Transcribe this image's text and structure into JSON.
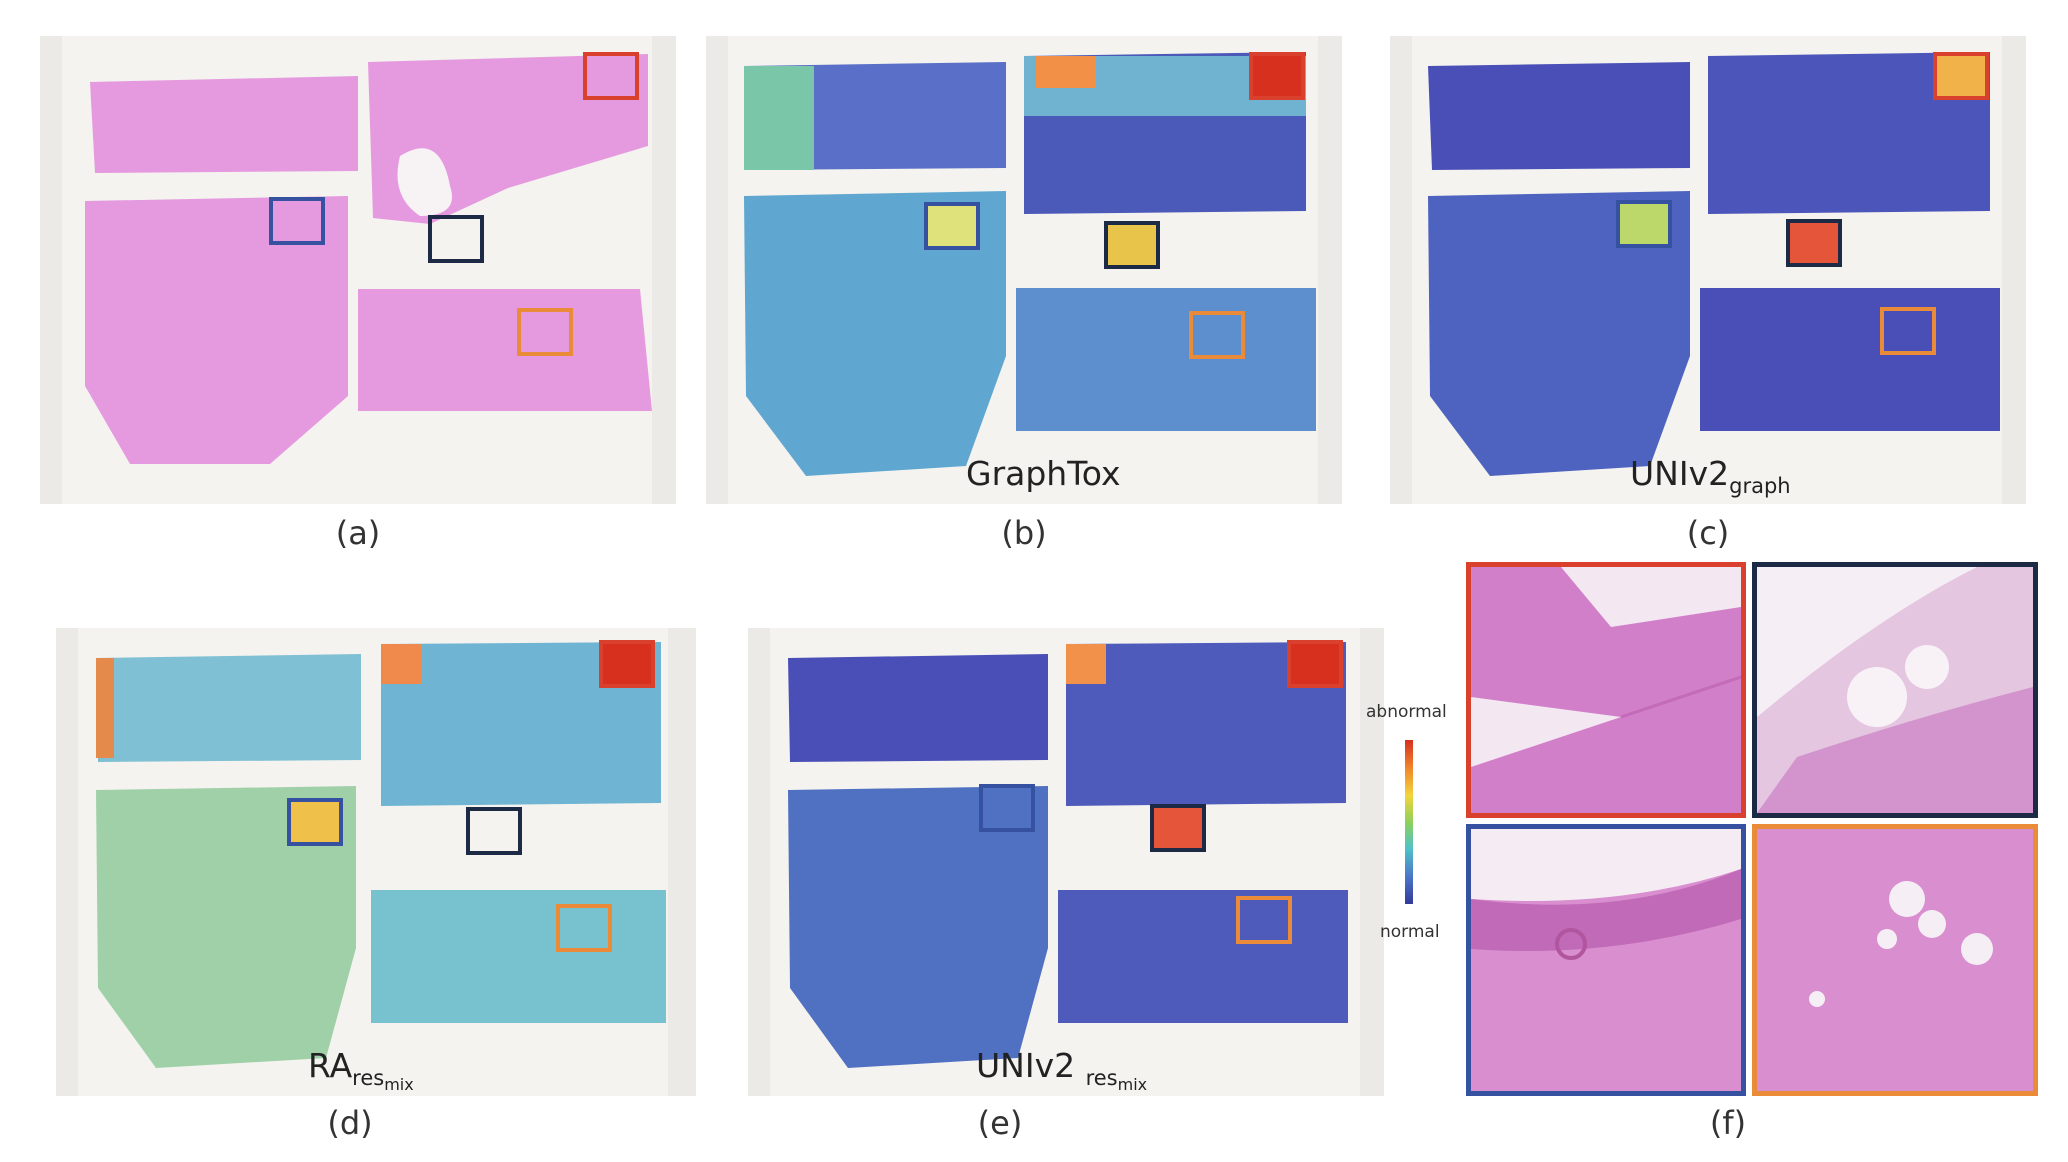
{
  "panels": {
    "a": {
      "caption": "(a)"
    },
    "b": {
      "caption": "(b)",
      "model": "GraphTox"
    },
    "c": {
      "caption": "(c)",
      "model": "UNIv2",
      "model_sub": "graph"
    },
    "d": {
      "caption": "(d)",
      "model": "RA",
      "model_sub": "res",
      "model_subsub": "mix"
    },
    "e": {
      "caption": "(e)",
      "model": "UNIv2 ",
      "model_sub": "res",
      "model_subsub": "mix"
    },
    "f": {
      "caption": "(f)"
    }
  },
  "legend": {
    "top_label": "abnormal",
    "bottom_label": "normal"
  },
  "colors": {
    "tissue": "#e59adf",
    "box_red": "#d9412e",
    "box_navy": "#1d2a45",
    "box_blue": "#3551a0",
    "box_orange": "#ea8b3a",
    "heat_low": "#4a4fb8",
    "heat_high": "#d7301f"
  }
}
